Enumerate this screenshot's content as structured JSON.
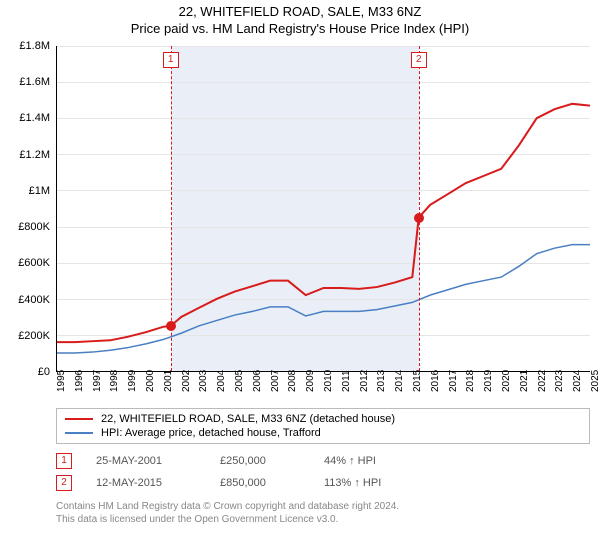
{
  "title": "22, WHITEFIELD ROAD, SALE, M33 6NZ",
  "subtitle": "Price paid vs. HM Land Registry's House Price Index (HPI)",
  "chart": {
    "type": "line",
    "background_color": "#ffffff",
    "grid_color": "#e5e5e5",
    "shade_color": "#eaeff7",
    "x_years": [
      1995,
      1996,
      1997,
      1998,
      1999,
      2000,
      2001,
      2002,
      2003,
      2004,
      2005,
      2006,
      2007,
      2008,
      2009,
      2010,
      2011,
      2012,
      2013,
      2014,
      2015,
      2016,
      2017,
      2018,
      2019,
      2020,
      2021,
      2022,
      2023,
      2024,
      2025
    ],
    "xlim": [
      1995,
      2025
    ],
    "ylim": [
      0,
      1800000
    ],
    "ytick_step": 200000,
    "ytick_labels": [
      "£0",
      "£200K",
      "£400K",
      "£600K",
      "£800K",
      "£1M",
      "£1.2M",
      "£1.4M",
      "£1.6M",
      "£1.8M"
    ],
    "shade_x": [
      2001.4,
      2015.36
    ],
    "series_red": {
      "label": "22, WHITEFIELD ROAD, SALE, M33 6NZ (detached house)",
      "color": "#d81b1b",
      "line_width": 2,
      "points": [
        [
          1995,
          160000
        ],
        [
          1996,
          160000
        ],
        [
          1997,
          165000
        ],
        [
          1998,
          170000
        ],
        [
          1999,
          190000
        ],
        [
          2000,
          215000
        ],
        [
          2001,
          245000
        ],
        [
          2001.4,
          250000
        ],
        [
          2002,
          300000
        ],
        [
          2003,
          350000
        ],
        [
          2004,
          400000
        ],
        [
          2005,
          440000
        ],
        [
          2006,
          470000
        ],
        [
          2007,
          500000
        ],
        [
          2008,
          500000
        ],
        [
          2009,
          420000
        ],
        [
          2010,
          460000
        ],
        [
          2011,
          460000
        ],
        [
          2012,
          455000
        ],
        [
          2013,
          465000
        ],
        [
          2014,
          490000
        ],
        [
          2015,
          520000
        ],
        [
          2015.36,
          850000
        ],
        [
          2016,
          920000
        ],
        [
          2017,
          980000
        ],
        [
          2018,
          1040000
        ],
        [
          2019,
          1080000
        ],
        [
          2020,
          1120000
        ],
        [
          2021,
          1250000
        ],
        [
          2022,
          1400000
        ],
        [
          2023,
          1450000
        ],
        [
          2024,
          1480000
        ],
        [
          2025,
          1470000
        ]
      ]
    },
    "series_blue": {
      "label": "HPI: Average price, detached house, Trafford",
      "color": "#4a7fc4",
      "line_width": 1.5,
      "points": [
        [
          1995,
          100000
        ],
        [
          1996,
          100000
        ],
        [
          1997,
          105000
        ],
        [
          1998,
          115000
        ],
        [
          1999,
          130000
        ],
        [
          2000,
          150000
        ],
        [
          2001,
          175000
        ],
        [
          2002,
          210000
        ],
        [
          2003,
          250000
        ],
        [
          2004,
          280000
        ],
        [
          2005,
          310000
        ],
        [
          2006,
          330000
        ],
        [
          2007,
          355000
        ],
        [
          2008,
          355000
        ],
        [
          2009,
          305000
        ],
        [
          2010,
          330000
        ],
        [
          2011,
          330000
        ],
        [
          2012,
          330000
        ],
        [
          2013,
          340000
        ],
        [
          2014,
          360000
        ],
        [
          2015,
          380000
        ],
        [
          2016,
          420000
        ],
        [
          2017,
          450000
        ],
        [
          2018,
          480000
        ],
        [
          2019,
          500000
        ],
        [
          2020,
          520000
        ],
        [
          2021,
          580000
        ],
        [
          2022,
          650000
        ],
        [
          2023,
          680000
        ],
        [
          2024,
          700000
        ],
        [
          2025,
          700000
        ]
      ]
    },
    "markers": [
      {
        "n": "1",
        "x": 2001.4,
        "y": 250000
      },
      {
        "n": "2",
        "x": 2015.36,
        "y": 850000
      }
    ]
  },
  "sales": [
    {
      "n": "1",
      "date": "25-MAY-2001",
      "price": "£250,000",
      "pct": "44% ↑ HPI"
    },
    {
      "n": "2",
      "date": "12-MAY-2015",
      "price": "£850,000",
      "pct": "113% ↑ HPI"
    }
  ],
  "footer": {
    "line1": "Contains HM Land Registry data © Crown copyright and database right 2024.",
    "line2": "This data is licensed under the Open Government Licence v3.0."
  }
}
